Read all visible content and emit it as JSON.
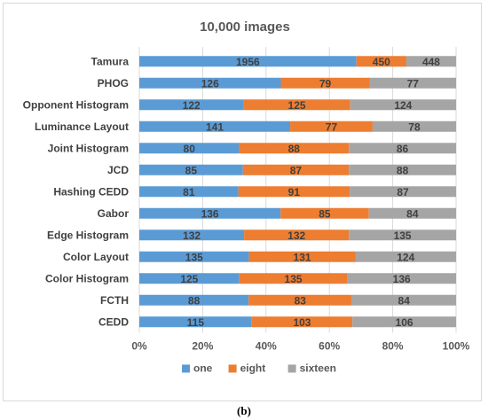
{
  "chart_data": {
    "type": "bar",
    "orientation": "horizontal",
    "stacked": "percent",
    "title": "10,000 images",
    "categories": [
      "Tamura",
      "PHOG",
      "Opponent Histogram",
      "Luminance Layout",
      "Joint Histogram",
      "JCD",
      "Hashing CEDD",
      "Gabor",
      "Edge Histogram",
      "Color Layout",
      "Color Histogram",
      "FCTH",
      "CEDD"
    ],
    "series": [
      {
        "name": "one",
        "color": "#5b9bd5",
        "values": [
          1956,
          126,
          122,
          141,
          80,
          85,
          81,
          136,
          132,
          135,
          125,
          88,
          115
        ]
      },
      {
        "name": "eight",
        "color": "#ed7d31",
        "values": [
          450,
          79,
          125,
          77,
          88,
          87,
          91,
          85,
          132,
          131,
          135,
          83,
          103
        ]
      },
      {
        "name": "sixteen",
        "color": "#a5a5a5",
        "values": [
          448,
          77,
          124,
          78,
          86,
          88,
          87,
          84,
          135,
          124,
          136,
          84,
          106
        ]
      }
    ],
    "x_ticks": [
      "0%",
      "20%",
      "40%",
      "60%",
      "80%",
      "100%"
    ],
    "xlim": [
      0,
      100
    ],
    "legend_position": "bottom",
    "grid": "vertical"
  },
  "caption": "(b)"
}
